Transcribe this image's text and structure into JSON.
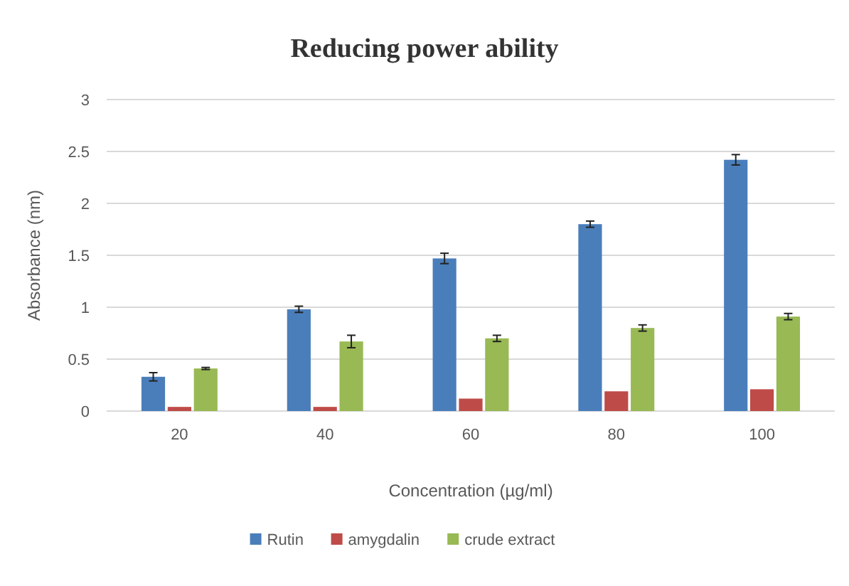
{
  "chart_data": {
    "type": "bar",
    "title": "Reducing power ability",
    "xlabel": "Concentration (µg/ml)",
    "ylabel": "Absorbance (nm)",
    "categories": [
      "20",
      "40",
      "60",
      "80",
      "100"
    ],
    "series": [
      {
        "name": "Rutin",
        "color": "#4a7ebb",
        "values": [
          0.33,
          0.98,
          1.47,
          1.8,
          2.42
        ],
        "errors": [
          0.04,
          0.03,
          0.05,
          0.03,
          0.05
        ]
      },
      {
        "name": "amygdalin",
        "color": "#be4b48",
        "values": [
          0.04,
          0.04,
          0.12,
          0.19,
          0.21
        ]
      },
      {
        "name": "crude extract",
        "color": "#98b954",
        "values": [
          0.41,
          0.67,
          0.7,
          0.8,
          0.91
        ],
        "errors": [
          0.01,
          0.06,
          0.03,
          0.03,
          0.03
        ]
      }
    ],
    "ylim": [
      0,
      3
    ],
    "yticks": [
      0,
      0.5,
      1,
      1.5,
      2,
      2.5,
      3
    ],
    "grid": "y",
    "legend": "bottom"
  }
}
